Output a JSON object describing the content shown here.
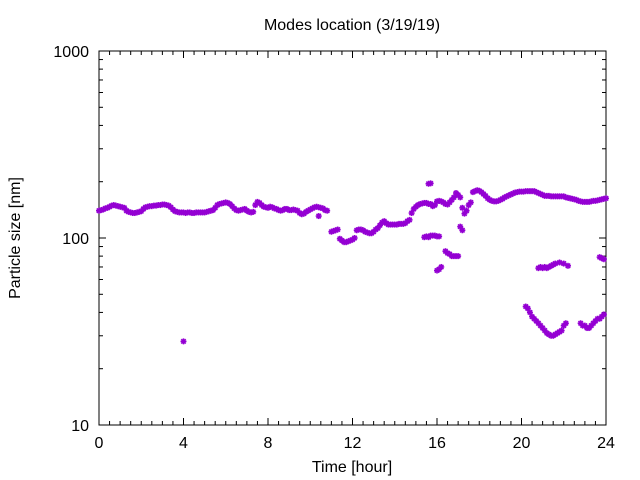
{
  "chart_data": {
    "type": "scatter",
    "title": "Modes location (3/19/19)",
    "xlabel": "Time [hour]",
    "ylabel": "Particle size [nm]",
    "xlim": [
      0,
      24
    ],
    "ylim": [
      10,
      1000
    ],
    "yscale": "log",
    "xticks": [
      0,
      4,
      8,
      12,
      16,
      20,
      24
    ],
    "yticks": [
      10,
      100,
      1000
    ],
    "xtick_labels": [
      "0",
      "4",
      "8",
      "12",
      "16",
      "20",
      "24"
    ],
    "ytick_labels": [
      "10",
      "100",
      "1000"
    ],
    "grid": false,
    "legend": "none",
    "marker_color": "#9400d3",
    "series": [
      {
        "name": "",
        "points": [
          [
            0.0,
            140
          ],
          [
            0.1,
            141
          ],
          [
            0.2,
            142
          ],
          [
            0.3,
            144
          ],
          [
            0.4,
            145
          ],
          [
            0.5,
            147
          ],
          [
            0.6,
            149
          ],
          [
            0.7,
            150
          ],
          [
            0.8,
            149
          ],
          [
            0.9,
            148
          ],
          [
            1.0,
            147
          ],
          [
            1.1,
            146
          ],
          [
            1.2,
            145
          ],
          [
            1.3,
            140
          ],
          [
            1.4,
            138
          ],
          [
            1.5,
            137
          ],
          [
            1.6,
            136
          ],
          [
            1.7,
            136
          ],
          [
            1.8,
            137
          ],
          [
            1.9,
            138
          ],
          [
            2.0,
            139
          ],
          [
            2.1,
            143
          ],
          [
            2.2,
            146
          ],
          [
            2.3,
            147
          ],
          [
            2.4,
            148
          ],
          [
            2.5,
            148
          ],
          [
            2.6,
            149
          ],
          [
            2.7,
            149
          ],
          [
            2.8,
            150
          ],
          [
            2.9,
            150
          ],
          [
            3.0,
            151
          ],
          [
            3.1,
            151
          ],
          [
            3.2,
            150
          ],
          [
            3.3,
            149
          ],
          [
            3.4,
            146
          ],
          [
            3.5,
            142
          ],
          [
            3.6,
            139
          ],
          [
            3.7,
            138
          ],
          [
            3.8,
            137
          ],
          [
            3.9,
            137
          ],
          [
            4.0,
            137
          ],
          [
            4.1,
            136
          ],
          [
            4.2,
            137
          ],
          [
            4.3,
            137
          ],
          [
            4.4,
            136
          ],
          [
            4.5,
            136
          ],
          [
            4.6,
            137
          ],
          [
            4.7,
            137
          ],
          [
            4.8,
            137
          ],
          [
            4.9,
            137
          ],
          [
            5.0,
            137
          ],
          [
            5.1,
            138
          ],
          [
            5.2,
            139
          ],
          [
            5.3,
            140
          ],
          [
            5.4,
            141
          ],
          [
            5.5,
            145
          ],
          [
            5.6,
            150
          ],
          [
            5.7,
            152
          ],
          [
            5.8,
            153
          ],
          [
            5.9,
            154
          ],
          [
            6.0,
            155
          ],
          [
            6.1,
            154
          ],
          [
            6.2,
            152
          ],
          [
            6.3,
            148
          ],
          [
            6.4,
            144
          ],
          [
            6.5,
            141
          ],
          [
            6.6,
            140
          ],
          [
            6.7,
            141
          ],
          [
            6.8,
            142
          ],
          [
            6.9,
            143
          ],
          [
            7.0,
            140
          ],
          [
            7.1,
            138
          ],
          [
            7.2,
            137
          ],
          [
            7.3,
            138
          ],
          [
            7.4,
            150
          ],
          [
            7.5,
            156
          ],
          [
            7.6,
            154
          ],
          [
            7.7,
            150
          ],
          [
            7.8,
            147
          ],
          [
            7.9,
            146
          ],
          [
            8.0,
            145
          ],
          [
            8.1,
            147
          ],
          [
            8.2,
            146
          ],
          [
            8.3,
            144
          ],
          [
            8.4,
            143
          ],
          [
            8.5,
            141
          ],
          [
            8.6,
            140
          ],
          [
            8.7,
            141
          ],
          [
            8.8,
            143
          ],
          [
            8.9,
            143
          ],
          [
            9.0,
            141
          ],
          [
            9.1,
            141
          ],
          [
            9.2,
            142
          ],
          [
            9.3,
            141
          ],
          [
            9.4,
            140
          ],
          [
            9.5,
            136
          ],
          [
            9.6,
            134
          ],
          [
            9.7,
            135
          ],
          [
            9.8,
            138
          ],
          [
            9.9,
            140
          ],
          [
            10.0,
            142
          ],
          [
            10.1,
            144
          ],
          [
            10.2,
            146
          ],
          [
            10.3,
            147
          ],
          [
            10.4,
            146
          ],
          [
            10.5,
            145
          ],
          [
            10.6,
            144
          ],
          [
            10.7,
            141
          ],
          [
            10.8,
            140
          ],
          [
            10.4,
            131
          ],
          [
            11.0,
            108
          ],
          [
            11.1,
            109
          ],
          [
            11.2,
            110
          ],
          [
            11.3,
            111
          ],
          [
            11.4,
            99
          ],
          [
            11.5,
            97
          ],
          [
            11.6,
            95
          ],
          [
            11.7,
            95
          ],
          [
            11.8,
            96
          ],
          [
            11.9,
            97
          ],
          [
            12.0,
            98
          ],
          [
            12.1,
            100
          ],
          [
            12.2,
            110
          ],
          [
            12.3,
            111
          ],
          [
            12.4,
            111
          ],
          [
            12.5,
            110
          ],
          [
            12.6,
            108
          ],
          [
            12.7,
            107
          ],
          [
            12.8,
            106
          ],
          [
            12.9,
            106
          ],
          [
            13.0,
            108
          ],
          [
            13.1,
            111
          ],
          [
            13.2,
            113
          ],
          [
            13.3,
            117
          ],
          [
            13.4,
            121
          ],
          [
            13.5,
            123
          ],
          [
            13.6,
            120
          ],
          [
            13.7,
            118
          ],
          [
            13.8,
            118
          ],
          [
            13.9,
            118
          ],
          [
            14.0,
            118
          ],
          [
            14.1,
            118
          ],
          [
            14.2,
            119
          ],
          [
            14.3,
            119
          ],
          [
            14.4,
            119
          ],
          [
            14.5,
            120
          ],
          [
            14.6,
            123
          ],
          [
            14.7,
            125
          ],
          [
            14.8,
            136
          ],
          [
            14.9,
            143
          ],
          [
            15.0,
            147
          ],
          [
            15.1,
            150
          ],
          [
            15.2,
            152
          ],
          [
            15.3,
            153
          ],
          [
            15.4,
            154
          ],
          [
            15.5,
            154
          ],
          [
            15.6,
            152
          ],
          [
            15.7,
            152
          ],
          [
            15.8,
            148
          ],
          [
            15.9,
            150
          ],
          [
            16.0,
            157
          ],
          [
            16.1,
            158
          ],
          [
            16.2,
            157
          ],
          [
            16.3,
            155
          ],
          [
            16.4,
            152
          ],
          [
            16.5,
            151
          ],
          [
            16.6,
            155
          ],
          [
            16.7,
            160
          ],
          [
            16.8,
            165
          ],
          [
            16.9,
            174
          ],
          [
            17.0,
            170
          ],
          [
            17.1,
            165
          ],
          [
            17.2,
            145
          ],
          [
            17.3,
            135
          ],
          [
            17.4,
            140
          ],
          [
            17.5,
            150
          ],
          [
            17.6,
            155
          ],
          [
            17.7,
            176
          ],
          [
            17.8,
            178
          ],
          [
            17.9,
            180
          ],
          [
            18.0,
            179
          ],
          [
            18.1,
            176
          ],
          [
            18.2,
            172
          ],
          [
            18.3,
            168
          ],
          [
            18.4,
            163
          ],
          [
            18.5,
            160
          ],
          [
            18.6,
            158
          ],
          [
            18.7,
            157
          ],
          [
            18.8,
            157
          ],
          [
            18.9,
            158
          ],
          [
            19.0,
            160
          ],
          [
            19.1,
            162
          ],
          [
            19.2,
            165
          ],
          [
            19.3,
            167
          ],
          [
            19.4,
            169
          ],
          [
            19.5,
            171
          ],
          [
            19.6,
            173
          ],
          [
            19.7,
            175
          ],
          [
            19.8,
            176
          ],
          [
            19.9,
            177
          ],
          [
            20.0,
            177
          ],
          [
            20.1,
            177
          ],
          [
            20.2,
            178
          ],
          [
            20.3,
            178
          ],
          [
            20.4,
            178
          ],
          [
            20.5,
            178
          ],
          [
            20.6,
            178
          ],
          [
            20.7,
            176
          ],
          [
            20.8,
            174
          ],
          [
            20.9,
            172
          ],
          [
            21.0,
            170
          ],
          [
            21.1,
            168
          ],
          [
            21.2,
            168
          ],
          [
            21.3,
            168
          ],
          [
            21.4,
            167
          ],
          [
            21.5,
            167
          ],
          [
            21.6,
            167
          ],
          [
            21.7,
            167
          ],
          [
            21.8,
            167
          ],
          [
            21.9,
            167
          ],
          [
            22.0,
            167
          ],
          [
            22.1,
            165
          ],
          [
            22.2,
            164
          ],
          [
            22.3,
            163
          ],
          [
            22.4,
            162
          ],
          [
            22.5,
            161
          ],
          [
            22.6,
            160
          ],
          [
            22.7,
            158
          ],
          [
            22.8,
            157
          ],
          [
            22.9,
            156
          ],
          [
            23.0,
            156
          ],
          [
            23.1,
            156
          ],
          [
            23.2,
            156
          ],
          [
            23.3,
            157
          ],
          [
            23.4,
            158
          ],
          [
            23.5,
            158
          ],
          [
            23.6,
            159
          ],
          [
            23.7,
            160
          ],
          [
            23.8,
            161
          ],
          [
            23.9,
            162
          ],
          [
            24.0,
            163
          ],
          [
            4.0,
            28
          ],
          [
            15.4,
            101
          ],
          [
            15.5,
            102
          ],
          [
            15.6,
            101
          ],
          [
            15.7,
            103
          ],
          [
            15.8,
            103
          ],
          [
            15.9,
            103
          ],
          [
            16.0,
            102
          ],
          [
            16.1,
            102
          ],
          [
            15.6,
            195
          ],
          [
            15.7,
            196
          ],
          [
            16.0,
            67
          ],
          [
            16.1,
            68
          ],
          [
            16.2,
            70
          ],
          [
            16.4,
            85
          ],
          [
            16.5,
            83
          ],
          [
            16.6,
            82
          ],
          [
            16.7,
            80
          ],
          [
            16.8,
            80
          ],
          [
            16.9,
            80
          ],
          [
            17.0,
            80
          ],
          [
            17.1,
            115
          ],
          [
            17.2,
            110
          ],
          [
            20.2,
            43
          ],
          [
            20.3,
            42
          ],
          [
            20.4,
            40
          ],
          [
            20.5,
            38
          ],
          [
            20.6,
            37
          ],
          [
            20.7,
            36
          ],
          [
            20.8,
            35
          ],
          [
            20.9,
            34
          ],
          [
            21.0,
            33
          ],
          [
            21.1,
            32
          ],
          [
            21.2,
            31
          ],
          [
            21.3,
            30.5
          ],
          [
            21.4,
            30
          ],
          [
            21.5,
            30
          ],
          [
            21.6,
            30.5
          ],
          [
            21.7,
            31
          ],
          [
            21.8,
            31.5
          ],
          [
            21.9,
            32
          ],
          [
            22.0,
            34
          ],
          [
            22.1,
            35
          ],
          [
            20.8,
            69
          ],
          [
            20.9,
            70
          ],
          [
            21.0,
            69
          ],
          [
            21.1,
            70
          ],
          [
            21.2,
            69
          ],
          [
            21.3,
            70
          ],
          [
            21.4,
            71
          ],
          [
            21.5,
            72
          ],
          [
            21.6,
            73
          ],
          [
            21.8,
            74
          ],
          [
            22.0,
            73
          ],
          [
            22.2,
            71
          ],
          [
            22.8,
            35
          ],
          [
            22.9,
            34
          ],
          [
            23.0,
            34
          ],
          [
            23.1,
            33
          ],
          [
            23.2,
            33
          ],
          [
            23.3,
            34
          ],
          [
            23.4,
            35
          ],
          [
            23.5,
            36
          ],
          [
            23.6,
            37
          ],
          [
            23.7,
            37
          ],
          [
            23.8,
            38
          ],
          [
            23.9,
            39
          ],
          [
            23.7,
            79
          ],
          [
            23.8,
            78
          ],
          [
            23.9,
            77
          ]
        ]
      }
    ]
  }
}
